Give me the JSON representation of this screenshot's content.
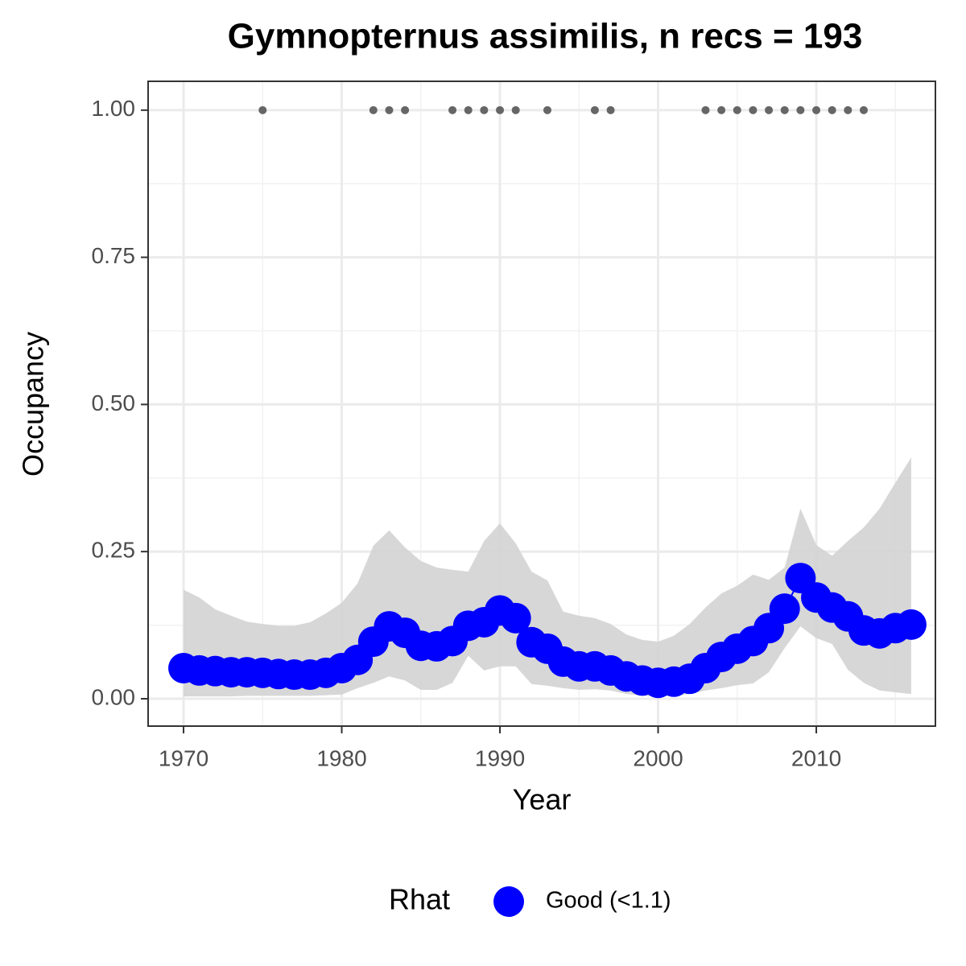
{
  "chart_data": {
    "type": "line",
    "title": "Gymnopternus assimilis, n recs = 193",
    "x_label": "Year",
    "y_label": "Occupancy",
    "x": [
      1970,
      1971,
      1972,
      1973,
      1974,
      1975,
      1976,
      1977,
      1978,
      1979,
      1980,
      1981,
      1982,
      1983,
      1984,
      1985,
      1986,
      1987,
      1988,
      1989,
      1990,
      1991,
      1992,
      1993,
      1994,
      1995,
      1996,
      1997,
      1998,
      1999,
      2000,
      2001,
      2002,
      2003,
      2004,
      2005,
      2006,
      2007,
      2008,
      2009,
      2010,
      2011,
      2012,
      2013,
      2014,
      2015,
      2016
    ],
    "series": [
      {
        "name": "Good (<1.1)",
        "color": "#0000ff",
        "values": [
          0.052,
          0.048,
          0.047,
          0.045,
          0.045,
          0.044,
          0.042,
          0.041,
          0.041,
          0.044,
          0.052,
          0.066,
          0.097,
          0.123,
          0.112,
          0.09,
          0.089,
          0.098,
          0.124,
          0.13,
          0.15,
          0.137,
          0.096,
          0.085,
          0.063,
          0.055,
          0.055,
          0.048,
          0.038,
          0.031,
          0.027,
          0.029,
          0.034,
          0.052,
          0.071,
          0.085,
          0.098,
          0.12,
          0.153,
          0.205,
          0.172,
          0.155,
          0.14,
          0.116,
          0.111,
          0.12,
          0.126
        ]
      }
    ],
    "ribbon": {
      "color": "#d3d3d3",
      "upper": [
        0.185,
        0.172,
        0.152,
        0.141,
        0.131,
        0.127,
        0.124,
        0.124,
        0.13,
        0.145,
        0.163,
        0.196,
        0.26,
        0.286,
        0.257,
        0.234,
        0.223,
        0.219,
        0.216,
        0.268,
        0.298,
        0.264,
        0.216,
        0.201,
        0.148,
        0.141,
        0.137,
        0.127,
        0.109,
        0.1,
        0.097,
        0.107,
        0.127,
        0.155,
        0.179,
        0.192,
        0.211,
        0.202,
        0.223,
        0.323,
        0.261,
        0.243,
        0.268,
        0.291,
        0.323,
        0.367,
        0.41
      ],
      "lower": [
        0.004,
        0.004,
        0.004,
        0.004,
        0.005,
        0.005,
        0.005,
        0.005,
        0.005,
        0.006,
        0.007,
        0.018,
        0.027,
        0.038,
        0.031,
        0.015,
        0.015,
        0.027,
        0.073,
        0.048,
        0.055,
        0.055,
        0.025,
        0.022,
        0.018,
        0.015,
        0.016,
        0.014,
        0.008,
        0.005,
        0.004,
        0.005,
        0.008,
        0.014,
        0.018,
        0.023,
        0.026,
        0.045,
        0.086,
        0.123,
        0.103,
        0.093,
        0.049,
        0.027,
        0.014,
        0.011,
        0.008
      ]
    },
    "records": {
      "color": "#666666",
      "x": [
        1975,
        1982,
        1983,
        1984,
        1987,
        1988,
        1989,
        1990,
        1991,
        1993,
        1996,
        1997,
        2003,
        2004,
        2005,
        2006,
        2007,
        2008,
        2009,
        2010,
        2011,
        2012,
        2013
      ],
      "values": [
        1,
        1,
        1,
        1,
        1,
        1,
        1,
        1,
        1,
        1,
        1,
        1,
        1,
        1,
        1,
        1,
        1,
        1,
        1,
        1,
        1,
        1,
        1
      ]
    },
    "xlim": [
      1967.76,
      2017.53
    ],
    "ylim": [
      -0.0465,
      1.049
    ],
    "xticks": [
      1970,
      1980,
      1990,
      2000,
      2010
    ],
    "yticks": [
      {
        "value": 0,
        "label": "0.00"
      },
      {
        "value": 0.25,
        "label": "0.25"
      },
      {
        "value": 0.5,
        "label": "0.50"
      },
      {
        "value": 0.75,
        "label": "0.75"
      },
      {
        "value": 1,
        "label": "1.00"
      }
    ],
    "grid": true,
    "legend_title": "Rhat",
    "legend_position": "bottom"
  }
}
